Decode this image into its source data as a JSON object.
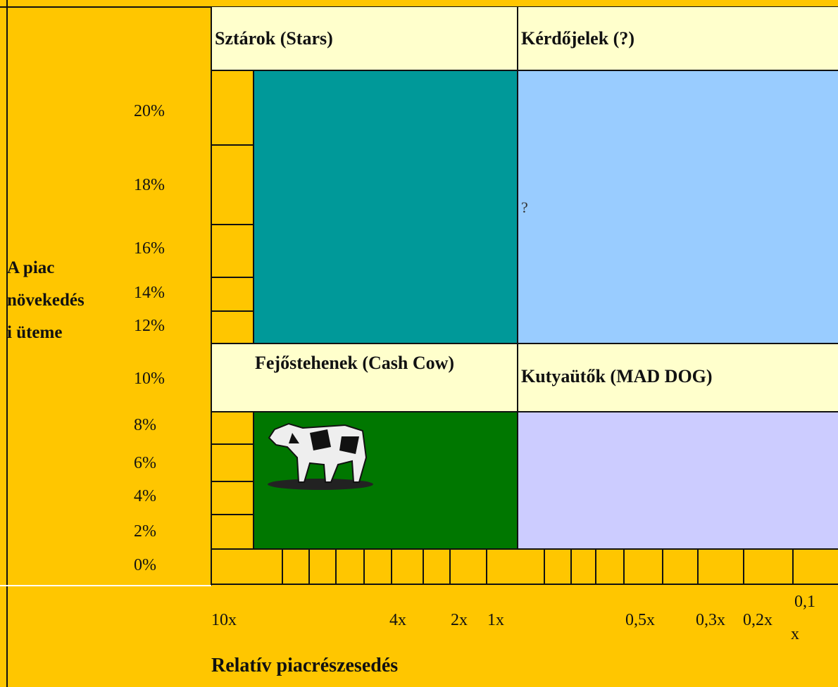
{
  "quadrants": [
    {
      "label": "Sztárok (Stars)"
    },
    {
      "label": "Kérdőjelek (?)",
      "mark": "?"
    },
    {
      "label": "Fejőstehenek (Cash Cow)"
    },
    {
      "label": "Kutyaütők (MAD DOG)"
    }
  ],
  "y_axis": {
    "title_lines": [
      "A piac",
      "növekedés",
      "i üteme"
    ],
    "labels": [
      "20%",
      "18%",
      "16%",
      "14%",
      "12%",
      "10%",
      "8%",
      "6%",
      "4%",
      "2%",
      "0%"
    ]
  },
  "x_axis": {
    "title": "Relatív piacrészesedés",
    "labels": [
      "10x",
      "4x",
      "2x",
      "1x",
      "0,5x",
      "0,3x",
      "0,2x",
      "0,1",
      "x"
    ]
  }
}
